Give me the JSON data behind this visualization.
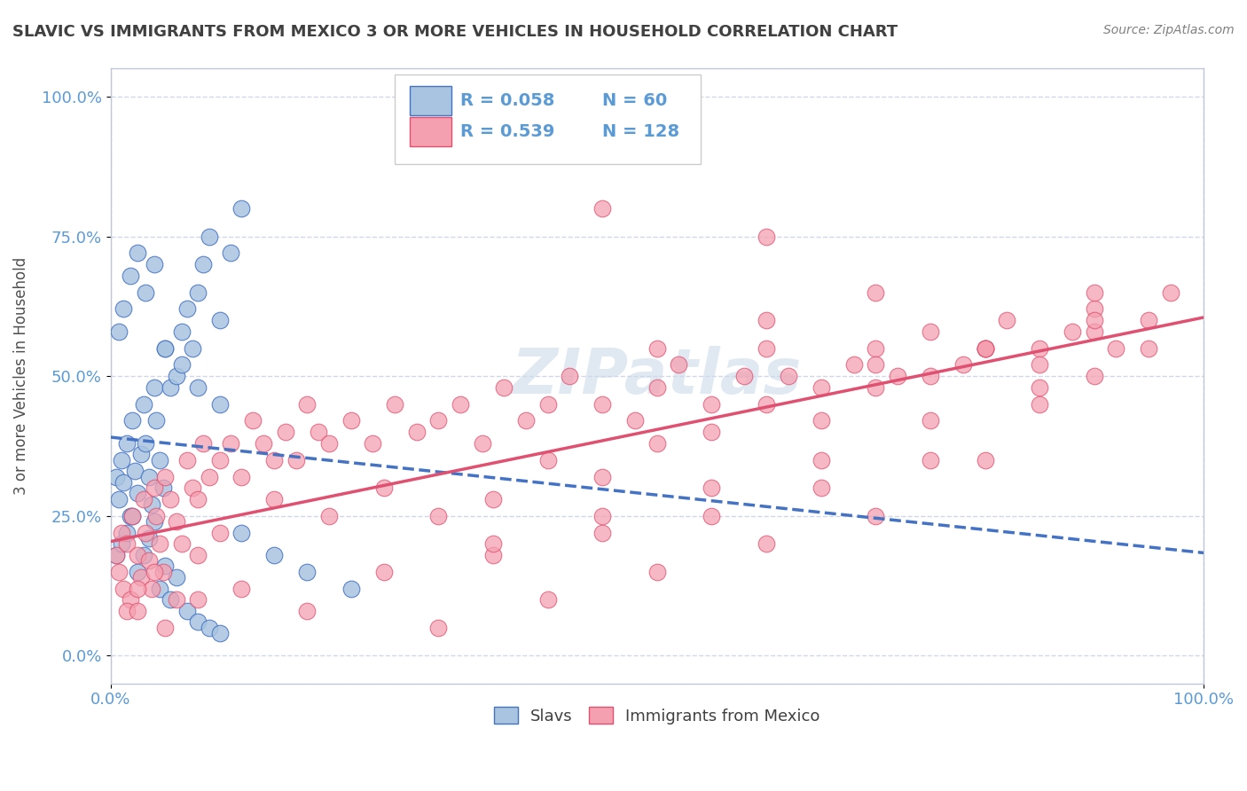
{
  "title": "SLAVIC VS IMMIGRANTS FROM MEXICO 3 OR MORE VEHICLES IN HOUSEHOLD CORRELATION CHART",
  "source": "Source: ZipAtlas.com",
  "ylabel": "3 or more Vehicles in Household",
  "watermark": "ZIPatlas",
  "legend1_r": "R = 0.058",
  "legend1_n": "N = 60",
  "legend2_r": "R = 0.539",
  "legend2_n": "N = 128",
  "slavs_color": "#a8c4e0",
  "mexico_color": "#f4a0b0",
  "slavs_line_color": "#4472c4",
  "mexico_line_color": "#e05070",
  "yticks": [
    0.0,
    0.25,
    0.5,
    0.75,
    1.0
  ],
  "yticklabels": [
    "0.0%",
    "25.0%",
    "50.0%",
    "75.0%",
    "100.0%"
  ],
  "xticklabels": [
    "0.0%",
    "100.0%"
  ],
  "slavs_x": [
    0.005,
    0.008,
    0.01,
    0.012,
    0.015,
    0.018,
    0.02,
    0.022,
    0.025,
    0.028,
    0.03,
    0.032,
    0.035,
    0.038,
    0.04,
    0.042,
    0.045,
    0.048,
    0.05,
    0.055,
    0.06,
    0.065,
    0.07,
    0.075,
    0.08,
    0.085,
    0.09,
    0.1,
    0.11,
    0.12,
    0.005,
    0.01,
    0.015,
    0.02,
    0.025,
    0.03,
    0.035,
    0.04,
    0.045,
    0.05,
    0.055,
    0.06,
    0.07,
    0.08,
    0.09,
    0.1,
    0.12,
    0.15,
    0.18,
    0.22,
    0.008,
    0.012,
    0.018,
    0.025,
    0.032,
    0.04,
    0.05,
    0.065,
    0.08,
    0.1
  ],
  "slavs_y": [
    0.32,
    0.28,
    0.35,
    0.31,
    0.38,
    0.25,
    0.42,
    0.33,
    0.29,
    0.36,
    0.45,
    0.38,
    0.32,
    0.27,
    0.48,
    0.42,
    0.35,
    0.3,
    0.55,
    0.48,
    0.5,
    0.58,
    0.62,
    0.55,
    0.65,
    0.7,
    0.75,
    0.6,
    0.72,
    0.8,
    0.18,
    0.2,
    0.22,
    0.25,
    0.15,
    0.18,
    0.21,
    0.24,
    0.12,
    0.16,
    0.1,
    0.14,
    0.08,
    0.06,
    0.05,
    0.04,
    0.22,
    0.18,
    0.15,
    0.12,
    0.58,
    0.62,
    0.68,
    0.72,
    0.65,
    0.7,
    0.55,
    0.52,
    0.48,
    0.45
  ],
  "mexico_x": [
    0.005,
    0.008,
    0.01,
    0.012,
    0.015,
    0.018,
    0.02,
    0.025,
    0.028,
    0.03,
    0.032,
    0.035,
    0.038,
    0.04,
    0.042,
    0.045,
    0.048,
    0.05,
    0.055,
    0.06,
    0.065,
    0.07,
    0.075,
    0.08,
    0.085,
    0.09,
    0.1,
    0.11,
    0.12,
    0.13,
    0.14,
    0.15,
    0.16,
    0.17,
    0.18,
    0.19,
    0.2,
    0.22,
    0.24,
    0.26,
    0.28,
    0.3,
    0.32,
    0.34,
    0.36,
    0.38,
    0.4,
    0.42,
    0.45,
    0.48,
    0.5,
    0.52,
    0.55,
    0.58,
    0.6,
    0.62,
    0.65,
    0.68,
    0.7,
    0.72,
    0.75,
    0.78,
    0.8,
    0.82,
    0.85,
    0.88,
    0.9,
    0.92,
    0.95,
    0.97,
    0.015,
    0.025,
    0.04,
    0.06,
    0.08,
    0.1,
    0.15,
    0.2,
    0.25,
    0.3,
    0.35,
    0.4,
    0.45,
    0.5,
    0.55,
    0.6,
    0.65,
    0.7,
    0.75,
    0.8,
    0.85,
    0.9,
    0.95,
    0.35,
    0.45,
    0.55,
    0.65,
    0.75,
    0.85,
    0.9,
    0.3,
    0.4,
    0.5,
    0.6,
    0.7,
    0.8,
    0.025,
    0.05,
    0.08,
    0.12,
    0.18,
    0.25,
    0.35,
    0.45,
    0.55,
    0.65,
    0.75,
    0.85,
    0.45,
    0.6,
    0.7,
    0.8,
    0.9,
    0.5,
    0.6,
    0.7,
    0.8,
    0.9
  ],
  "mexico_y": [
    0.18,
    0.15,
    0.22,
    0.12,
    0.2,
    0.1,
    0.25,
    0.18,
    0.14,
    0.28,
    0.22,
    0.17,
    0.12,
    0.3,
    0.25,
    0.2,
    0.15,
    0.32,
    0.28,
    0.24,
    0.2,
    0.35,
    0.3,
    0.28,
    0.38,
    0.32,
    0.35,
    0.38,
    0.32,
    0.42,
    0.38,
    0.35,
    0.4,
    0.35,
    0.45,
    0.4,
    0.38,
    0.42,
    0.38,
    0.45,
    0.4,
    0.42,
    0.45,
    0.38,
    0.48,
    0.42,
    0.45,
    0.5,
    0.45,
    0.42,
    0.48,
    0.52,
    0.45,
    0.5,
    0.55,
    0.5,
    0.48,
    0.52,
    0.55,
    0.5,
    0.58,
    0.52,
    0.55,
    0.6,
    0.55,
    0.58,
    0.62,
    0.55,
    0.6,
    0.65,
    0.08,
    0.12,
    0.15,
    0.1,
    0.18,
    0.22,
    0.28,
    0.25,
    0.3,
    0.25,
    0.28,
    0.35,
    0.32,
    0.38,
    0.4,
    0.45,
    0.42,
    0.48,
    0.5,
    0.55,
    0.52,
    0.58,
    0.55,
    0.18,
    0.22,
    0.25,
    0.3,
    0.35,
    0.45,
    0.5,
    0.05,
    0.1,
    0.15,
    0.2,
    0.25,
    0.35,
    0.08,
    0.05,
    0.1,
    0.12,
    0.08,
    0.15,
    0.2,
    0.25,
    0.3,
    0.35,
    0.42,
    0.48,
    0.8,
    0.75,
    0.52,
    0.55,
    0.65,
    0.55,
    0.6,
    0.65,
    0.55,
    0.6
  ],
  "bg_color": "#ffffff",
  "grid_color": "#d0d8e8",
  "title_color": "#404040",
  "tick_label_color": "#5b9bd5",
  "legend_label_color": "#5b9bd5"
}
